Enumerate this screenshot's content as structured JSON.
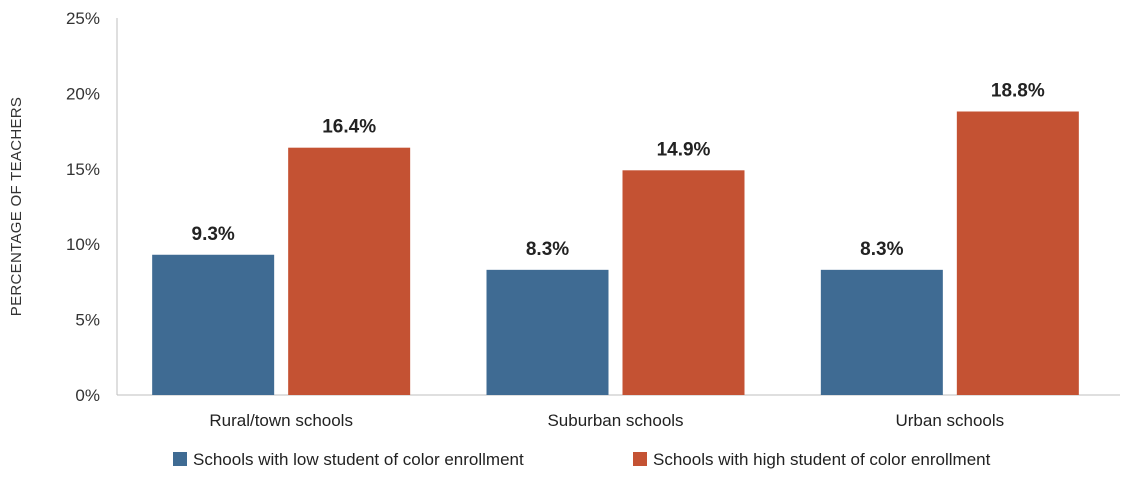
{
  "chart_data": {
    "type": "bar",
    "title": "",
    "xlabel": "",
    "ylabel": "PERCENTAGE OF TEACHERS",
    "ylim": [
      0,
      25
    ],
    "yticks": [
      "0%",
      "5%",
      "10%",
      "15%",
      "20%",
      "25%"
    ],
    "ytick_values": [
      0,
      5,
      10,
      15,
      20,
      25
    ],
    "grid": false,
    "legend_position": "bottom",
    "categories": [
      "Rural/town schools",
      "Suburban schools",
      "Urban schools"
    ],
    "series": [
      {
        "name": "Schools with low student of color enrollment",
        "color": "#3f6b93",
        "values": [
          9.3,
          8.3,
          8.3
        ],
        "labels": [
          "9.3%",
          "8.3%",
          "8.3%"
        ]
      },
      {
        "name": "Schools with high student of color enrollment",
        "color": "#c45233",
        "values": [
          16.4,
          14.9,
          18.8
        ],
        "labels": [
          "16.4%",
          "14.9%",
          "18.8%"
        ]
      }
    ]
  }
}
